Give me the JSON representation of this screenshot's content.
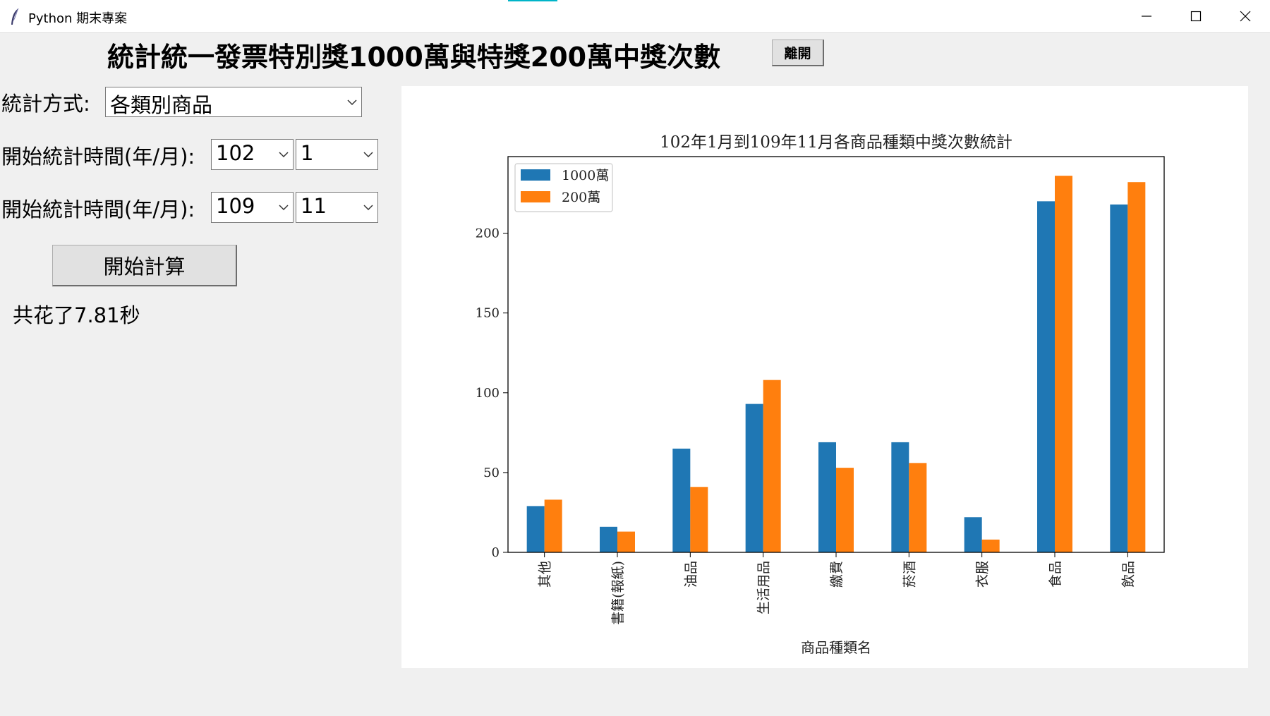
{
  "window": {
    "title": "Python 期末專案",
    "controls": [
      "minimize",
      "maximize",
      "close"
    ]
  },
  "heading": "統計統一發票特別獎1000萬與特獎200萬中獎次數",
  "exit_button": "離開",
  "form": {
    "method_label": "統計方式:",
    "method_value": "各類別商品",
    "start_label": "開始統計時間(年/月):",
    "start_year": "102",
    "start_month": "1",
    "end_label": "開始統計時間(年/月):",
    "end_year": "109",
    "end_month": "11",
    "calc_button": "開始計算",
    "elapsed": "共花了7.81秒"
  },
  "icons": {
    "app": "feather-icon",
    "dropdown": "chevron-down-icon"
  },
  "colors": {
    "series_1000": "#1f77b4",
    "series_200": "#ff7f0e",
    "accent": "#00b4c8"
  },
  "chart_data": {
    "type": "bar",
    "title": "102年1月到109年11月各商品種類中獎次數統計",
    "xlabel": "商品種類名",
    "ylabel": "",
    "categories": [
      "其他",
      "書籍(報紙)",
      "油品",
      "生活用品",
      "繳費",
      "菸酒",
      "衣服",
      "食品",
      "飲品"
    ],
    "series": [
      {
        "name": "1000萬",
        "values": [
          29,
          16,
          65,
          93,
          69,
          69,
          22,
          220,
          218
        ]
      },
      {
        "name": "200萬",
        "values": [
          33,
          13,
          41,
          108,
          53,
          56,
          8,
          236,
          232
        ]
      }
    ],
    "ylim": [
      0,
      248
    ],
    "yticks": [
      0,
      50,
      100,
      150,
      200
    ],
    "legend": "top-left",
    "grid": false
  }
}
